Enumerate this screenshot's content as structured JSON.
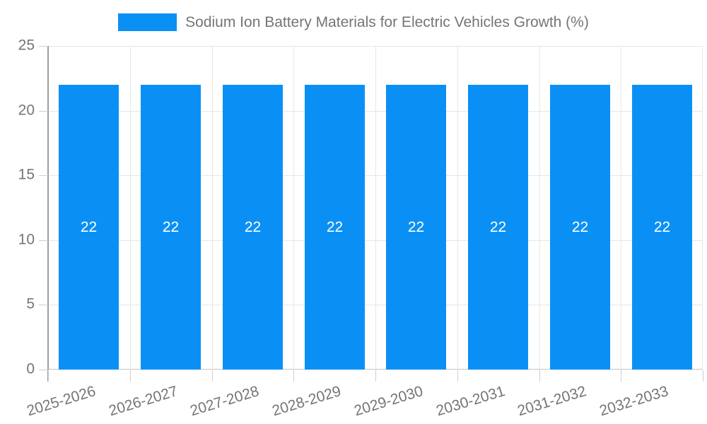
{
  "chart_data": {
    "type": "bar",
    "title": "Sodium Ion Battery Materials for Electric Vehicles Growth (%)",
    "categories": [
      "2025-2026",
      "2026-2027",
      "2027-2028",
      "2028-2029",
      "2029-2030",
      "2030-2031",
      "2031-2032",
      "2032-2033"
    ],
    "series": [
      {
        "name": "Sodium Ion Battery Materials for Electric Vehicles Growth (%)",
        "values": [
          22,
          22,
          22,
          22,
          22,
          22,
          22,
          22
        ]
      }
    ],
    "bar_value_labels": [
      "22",
      "22",
      "22",
      "22",
      "22",
      "22",
      "22",
      "22"
    ],
    "xlabel": "",
    "ylabel": "",
    "ylim": [
      0,
      25
    ],
    "yticks": [
      0,
      5,
      10,
      15,
      20,
      25
    ],
    "grid": true,
    "legend_position": "top-center",
    "x_tick_label_rotation_deg": 17
  },
  "legend": {
    "label": "Sodium Ion Battery Materials for Electric Vehicles Growth (%)"
  },
  "colors": {
    "bar": "#0a90f5",
    "gridline": "#e6e6e6",
    "baseline": "#c4c4c4",
    "axis_line": "#9e9e9e",
    "tick_mark": "#cfcfcf",
    "tick_label_text": "#757575",
    "title_text": "#757575",
    "bar_label_text": "#ffffff",
    "background": "#ffffff"
  }
}
